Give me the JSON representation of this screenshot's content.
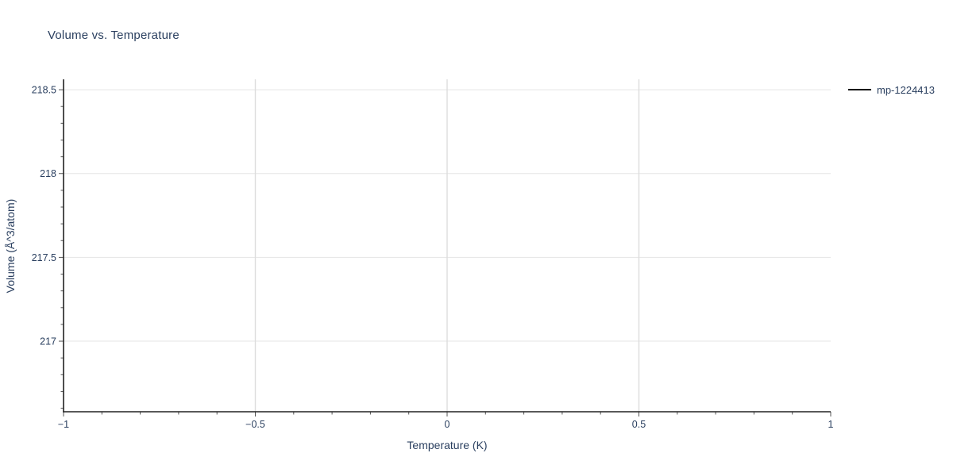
{
  "title": "Volume vs. Temperature",
  "colors": {
    "text": "#2a3f5f",
    "axis_line": "#222222",
    "grid_h": "#e5e5e5",
    "grid_v": "#dddddd",
    "tick": "#555555",
    "series_line": "#000000",
    "background": "#ffffff"
  },
  "legend": {
    "items": [
      {
        "label": "mp-1224413",
        "swatch": "line",
        "color": "#000000"
      }
    ]
  },
  "chart_data": {
    "type": "line",
    "title": "Volume vs. Temperature",
    "xlabel": "Temperature (K)",
    "ylabel": "Volume (Å^3/atom)",
    "xlim": [
      -1,
      1
    ],
    "ylim": [
      216.579,
      218.562
    ],
    "x_ticks": [
      {
        "value": -1,
        "label": "−1"
      },
      {
        "value": -0.5,
        "label": "−0.5"
      },
      {
        "value": 0,
        "label": "0"
      },
      {
        "value": 0.5,
        "label": "0.5"
      },
      {
        "value": 1,
        "label": "1"
      }
    ],
    "y_ticks": [
      {
        "value": 217,
        "label": "217"
      },
      {
        "value": 217.5,
        "label": "217.5"
      },
      {
        "value": 218,
        "label": "218"
      },
      {
        "value": 218.5,
        "label": "218.5"
      }
    ],
    "minor_tick_step": 0.1,
    "grid": true,
    "legend_position": "top-right",
    "series": [
      {
        "name": "mp-1224413",
        "color": "#000000",
        "type": "line",
        "x": [],
        "y": []
      }
    ]
  }
}
